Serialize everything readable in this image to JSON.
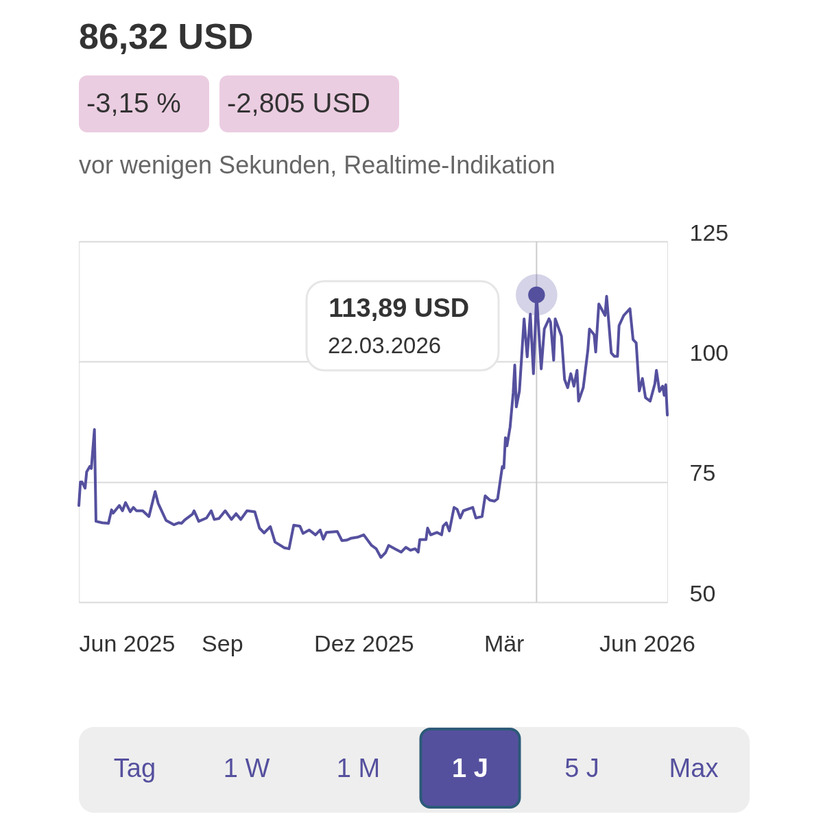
{
  "chart_data": {
    "type": "line",
    "title": "86,32 USD",
    "subtitle": "vor wenigen Sekunden, Realtime-Indikation",
    "x": [
      "2025-06-01",
      "2025-06-02",
      "2025-06-03",
      "2025-06-05",
      "2025-06-06",
      "2025-06-08",
      "2025-06-09",
      "2025-06-11",
      "2025-06-12",
      "2025-06-16",
      "2025-06-20",
      "2025-06-22",
      "2025-06-23",
      "2025-06-27",
      "2025-06-29",
      "2025-07-01",
      "2025-07-04",
      "2025-07-06",
      "2025-07-08",
      "2025-07-12",
      "2025-07-16",
      "2025-07-20",
      "2025-07-22",
      "2025-07-23",
      "2025-07-27",
      "2025-08-01",
      "2025-08-04",
      "2025-08-06",
      "2025-08-08",
      "2025-08-13",
      "2025-08-14",
      "2025-08-17",
      "2025-08-22",
      "2025-08-25",
      "2025-08-27",
      "2025-08-30",
      "2025-09-03",
      "2025-09-07",
      "2025-09-10",
      "2025-09-13",
      "2025-09-17",
      "2025-09-22",
      "2025-09-25",
      "2025-09-28",
      "2025-10-02",
      "2025-10-05",
      "2025-10-07",
      "2025-10-11",
      "2025-10-14",
      "2025-10-17",
      "2025-10-21",
      "2025-10-23",
      "2025-10-27",
      "2025-10-31",
      "2025-11-03",
      "2025-11-05",
      "2025-11-07",
      "2025-11-14",
      "2025-11-17",
      "2025-11-20",
      "2025-11-23",
      "2025-11-27",
      "2025-12-01",
      "2025-12-06",
      "2025-12-09",
      "2025-12-12",
      "2025-12-15",
      "2025-12-17",
      "2025-12-21",
      "2025-12-25",
      "2025-12-28",
      "2025-12-31",
      "2026-01-03",
      "2026-01-05",
      "2026-01-06",
      "2026-01-10",
      "2026-01-11",
      "2026-01-13",
      "2026-01-17",
      "2026-01-20",
      "2026-01-21",
      "2026-01-23",
      "2026-01-25",
      "2026-01-28",
      "2026-01-30",
      "2026-02-01",
      "2026-02-03",
      "2026-02-09",
      "2026-02-11",
      "2026-02-15",
      "2026-02-17",
      "2026-02-20",
      "2026-02-23",
      "2026-02-25",
      "2026-02-28",
      "2026-03-01",
      "2026-03-02",
      "2026-03-03",
      "2026-03-05",
      "2026-03-07",
      "2026-03-08",
      "2026-03-09",
      "2026-03-11",
      "2026-03-12",
      "2026-03-14",
      "2026-03-16",
      "2026-03-18",
      "2026-03-20",
      "2026-03-22",
      "2026-03-25",
      "2026-03-27",
      "2026-03-30",
      "2026-03-31",
      "2026-04-02",
      "2026-04-03",
      "2026-04-07",
      "2026-04-09",
      "2026-04-11",
      "2026-04-13",
      "2026-04-15",
      "2026-04-17",
      "2026-04-18",
      "2026-04-21",
      "2026-04-24",
      "2026-04-25",
      "2026-04-28",
      "2026-04-29",
      "2026-05-01",
      "2026-05-05",
      "2026-05-06",
      "2026-05-09",
      "2026-05-11",
      "2026-05-13",
      "2026-05-14",
      "2026-05-17",
      "2026-05-21",
      "2026-05-23",
      "2026-05-25",
      "2026-05-27",
      "2026-05-29",
      "2026-05-31",
      "2026-06-03",
      "2026-06-06",
      "2026-06-07",
      "2026-06-09",
      "2026-06-11",
      "2026-06-12",
      "2026-06-13",
      "2026-06-14"
    ],
    "series": [
      {
        "color": "#55509e",
        "values": [
          70.1,
          75.0,
          75.0,
          73.7,
          77.1,
          78.2,
          77.8,
          85.9,
          66.8,
          66.5,
          66.4,
          69.2,
          68.5,
          70.1,
          69.0,
          70.7,
          68.8,
          69.7,
          69.0,
          69.0,
          67.8,
          73.0,
          70.5,
          69.8,
          67.0,
          66.1,
          66.5,
          66.4,
          67.1,
          68.3,
          69.0,
          66.8,
          67.5,
          69.0,
          67.2,
          67.4,
          69.0,
          67.2,
          68.4,
          67.2,
          69.0,
          68.8,
          65.4,
          64.4,
          65.7,
          62.5,
          62.1,
          61.3,
          61.1,
          66.0,
          65.8,
          64.3,
          65.0,
          64.0,
          65.0,
          63.1,
          64.5,
          64.7,
          62.8,
          62.9,
          63.3,
          63.5,
          64.0,
          61.8,
          61.1,
          59.3,
          60.3,
          61.8,
          61.1,
          60.4,
          61.4,
          60.8,
          61.1,
          60.4,
          63.0,
          63.0,
          65.4,
          64.0,
          64.5,
          64.0,
          65.8,
          66.5,
          64.8,
          69.7,
          69.3,
          67.5,
          69.0,
          69.7,
          67.5,
          67.8,
          72.1,
          71.2,
          71.0,
          71.5,
          78.2,
          77.9,
          84.2,
          82.5,
          86.4,
          93.5,
          99.3,
          90.6,
          93.9,
          98.9,
          108.9,
          101.0,
          109.9,
          97.5,
          113.89,
          98.5,
          106.8,
          108.9,
          108.2,
          100.3,
          108.9,
          105.3,
          96.3,
          94.6,
          97.5,
          94.9,
          98.2,
          91.8,
          94.6,
          102.5,
          106.8,
          105.6,
          102.0,
          112.0,
          109.6,
          113.6,
          101.8,
          101.1,
          101.1,
          107.5,
          109.6,
          111.0,
          104.6,
          103.9,
          93.9,
          96.5,
          92.5,
          91.8,
          95.4,
          98.2,
          93.8,
          94.9,
          93.0,
          95.2,
          88.9
        ]
      },
      {
        "type": "scatter",
        "marker": "circle",
        "color": "#55509e",
        "x": [
          "2026-03-22"
        ],
        "values": [
          113.89
        ]
      }
    ],
    "xlim": [
      "2025-06-01",
      "2026-06-14"
    ],
    "xticks": [
      {
        "value": "2025-06-01",
        "label": "Jun 2025"
      },
      {
        "value": "2025-09-01",
        "label": "Sep"
      },
      {
        "value": "2025-12-01",
        "label": "Dez 2025"
      },
      {
        "value": "2026-03-01",
        "label": "Mär"
      },
      {
        "value": "2026-06-01",
        "label": "Jun 2026"
      }
    ],
    "ylim": [
      50,
      125
    ],
    "yticks": [
      50,
      75,
      100,
      125
    ],
    "grid": "y",
    "marker": "none",
    "line_style": "solid",
    "ref_lines": [
      {
        "axis": "x",
        "value": "2026-03-22",
        "color": "#cccccc"
      }
    ],
    "annotations": [
      "-3,15 %",
      "-2,805 USD",
      {
        "text": "113,89 USD",
        "x": "2026-03-22",
        "y": 113.89
      },
      "22.03.2026",
      "Tag",
      "1 W",
      "1 M",
      "1 J",
      "5 J",
      "Max"
    ]
  }
}
